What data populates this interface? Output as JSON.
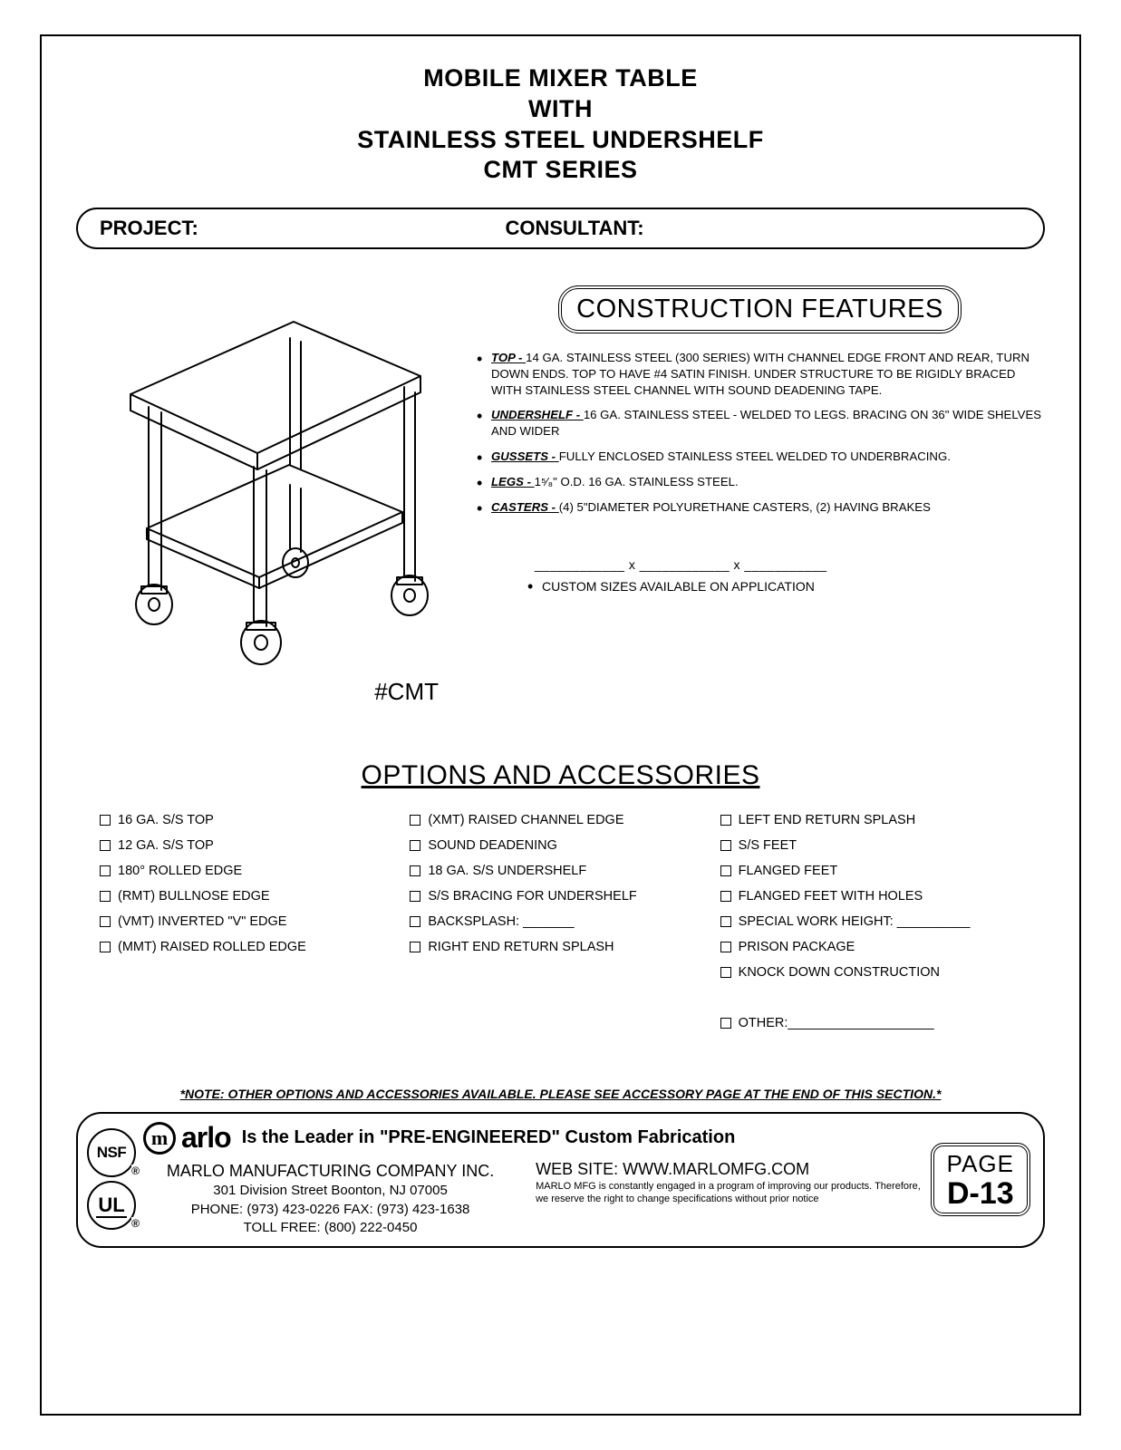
{
  "title": {
    "line1": "MOBILE MIXER TABLE",
    "line2": "WITH",
    "line3": "STAINLESS STEEL UNDERSHELF",
    "line4": "CMT  SERIES"
  },
  "projectBar": {
    "project": "PROJECT:",
    "consultant": "CONSULTANT:"
  },
  "modelLabel": "#CMT",
  "constructionHeading": "CONSTRUCTION FEATURES",
  "features": [
    {
      "label": "TOP - ",
      "text": "14 GA. STAINLESS STEEL (300 SERIES) WITH CHANNEL EDGE FRONT AND REAR, TURN DOWN ENDS. TOP TO HAVE #4 SATIN FINISH. UNDER STRUCTURE TO BE RIGIDLY BRACED WITH STAINLESS STEEL CHANNEL WITH SOUND DEADENING TAPE."
    },
    {
      "label": "UNDERSHELF - ",
      "text": "16 GA. STAINLESS STEEL - WELDED TO LEGS. BRACING ON 36\" WIDE SHELVES AND WIDER"
    },
    {
      "label": "GUSSETS - ",
      "text": "FULLY ENCLOSED STAINLESS STEEL WELDED TO UNDERBRACING."
    },
    {
      "label": "LEGS - ",
      "text": " 1⁵⁄₈\" O.D. 16 GA. STAINLESS STEEL."
    },
    {
      "label": "CASTERS - ",
      "text": "(4) 5\"DIAMETER POLYURETHANE CASTERS, (2) HAVING BRAKES"
    }
  ],
  "dimsBlanks": "____________ x ____________ x ___________",
  "customSizes": "CUSTOM SIZES AVAILABLE ON APPLICATION",
  "optionsHeading": "OPTIONS AND ACCESSORIES",
  "optionsCols": [
    [
      "16 GA. S/S TOP",
      "12 GA. S/S TOP",
      "180° ROLLED EDGE",
      "(RMT) BULLNOSE EDGE",
      "(VMT) INVERTED \"V\" EDGE",
      "(MMT) RAISED ROLLED EDGE"
    ],
    [
      "(XMT) RAISED CHANNEL EDGE",
      "SOUND DEADENING",
      "18 GA. S/S UNDERSHELF",
      "S/S BRACING FOR UNDERSHELF",
      "BACKSPLASH: _______",
      "RIGHT END RETURN SPLASH"
    ],
    [
      "LEFT END RETURN SPLASH",
      "S/S FEET",
      "FLANGED FEET",
      "FLANGED FEET WITH HOLES",
      "SPECIAL WORK HEIGHT: __________",
      "PRISON PACKAGE",
      "KNOCK DOWN CONSTRUCTION",
      "",
      "OTHER:____________________"
    ]
  ],
  "noteLine": "*NOTE: OTHER OPTIONS AND ACCESSORIES AVAILABLE. PLEASE SEE ACCESSORY PAGE AT THE END OF THIS SECTION.*",
  "footer": {
    "nsf": "NSF",
    "ul": "UL",
    "logoM": "m",
    "arlo": "arlo",
    "tagline": "Is the Leader in \"PRE-ENGINEERED\" Custom Fabrication",
    "company": "MARLO MANUFACTURING COMPANY INC.",
    "address": "301 Division Street    Boonton, NJ 07005",
    "phone": "PHONE: (973) 423-0226  FAX: (973) 423-1638",
    "tollfree": "TOLL FREE: (800) 222-0450",
    "website": "WEB SITE: WWW.MARLOMFG.COM",
    "disclaimer": "MARLO MFG is constantly engaged in a program of  improving our products. Therefore, we reserve the right  to change specifications without prior notice",
    "pageLabel": "PAGE",
    "pageNum": "D-13"
  },
  "colors": {
    "stroke": "#000000",
    "bg": "#ffffff"
  }
}
